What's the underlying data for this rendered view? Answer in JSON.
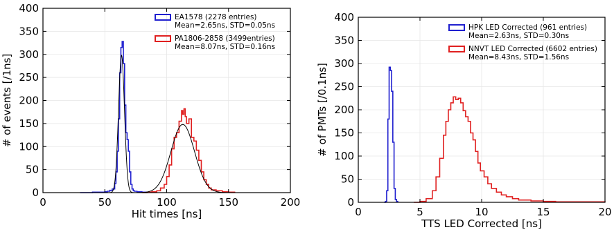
{
  "chart_data": [
    {
      "type": "histogram",
      "xlabel": "Hit times [ns]",
      "ylabel": "# of events [/1ns]",
      "xlim": [
        0,
        200
      ],
      "ylim": [
        0,
        400
      ],
      "xticks": [
        0,
        50,
        100,
        150,
        200
      ],
      "yticks": [
        0,
        50,
        100,
        150,
        200,
        250,
        300,
        350,
        400
      ],
      "grid": true,
      "legend_position": "top-right",
      "series": [
        {
          "name": "EA1578 (2278 entries)",
          "stats": "Mean=2.65ns, STD=0.05ns",
          "color": "#1f1fcf",
          "bins": [
            [
              30,
              0
            ],
            [
              40,
              1
            ],
            [
              50,
              2
            ],
            [
              52,
              3
            ],
            [
              54,
              5
            ],
            [
              56,
              8
            ],
            [
              58,
              20
            ],
            [
              59,
              45
            ],
            [
              60,
              90
            ],
            [
              61,
              160
            ],
            [
              62,
              260
            ],
            [
              63,
              315
            ],
            [
              64,
              328
            ],
            [
              65,
              280
            ],
            [
              66,
              190
            ],
            [
              67,
              130
            ],
            [
              68,
              115
            ],
            [
              69,
              90
            ],
            [
              70,
              45
            ],
            [
              71,
              18
            ],
            [
              72,
              8
            ],
            [
              73,
              4
            ],
            [
              74,
              3
            ],
            [
              76,
              2
            ],
            [
              80,
              1
            ],
            [
              85,
              1
            ],
            [
              90,
              0
            ]
          ]
        },
        {
          "name": "PA1806-2858 (3499entries)",
          "stats": "Mean=8.07ns, STD=0.16ns",
          "color": "#e02020",
          "bins": [
            [
              80,
              0
            ],
            [
              84,
              1
            ],
            [
              88,
              2
            ],
            [
              92,
              4
            ],
            [
              95,
              10
            ],
            [
              98,
              18
            ],
            [
              100,
              35
            ],
            [
              102,
              60
            ],
            [
              104,
              95
            ],
            [
              106,
              120
            ],
            [
              108,
              130
            ],
            [
              110,
              155
            ],
            [
              112,
              178
            ],
            [
              113,
              170
            ],
            [
              114,
              182
            ],
            [
              115,
              165
            ],
            [
              116,
              150
            ],
            [
              118,
              160
            ],
            [
              120,
              120
            ],
            [
              122,
              112
            ],
            [
              124,
              92
            ],
            [
              126,
              70
            ],
            [
              128,
              45
            ],
            [
              130,
              28
            ],
            [
              132,
              18
            ],
            [
              134,
              10
            ],
            [
              136,
              6
            ],
            [
              140,
              4
            ],
            [
              145,
              2
            ],
            [
              150,
              1
            ],
            [
              155,
              0
            ]
          ]
        }
      ],
      "fits": [
        {
          "mean": 63.5,
          "sigma": 2.4,
          "amplitude": 298
        },
        {
          "mean": 113,
          "sigma": 9.5,
          "amplitude": 148
        }
      ]
    },
    {
      "type": "histogram",
      "xlabel": "TTS LED Corrected [ns]",
      "ylabel": "# of PMTs [/0.1ns]",
      "xlim": [
        0,
        20
      ],
      "ylim": [
        0,
        400
      ],
      "xticks": [
        0,
        5,
        10,
        15,
        20
      ],
      "yticks": [
        0,
        50,
        100,
        150,
        200,
        250,
        300,
        350,
        400
      ],
      "grid": true,
      "legend_position": "top-right",
      "series": [
        {
          "name": "HPK LED Corrected (961 entries)",
          "stats": "Mean=2.63ns, STD=0.30ns",
          "color": "#1f1fcf",
          "bins": [
            [
              2.1,
              0
            ],
            [
              2.2,
              2
            ],
            [
              2.3,
              25
            ],
            [
              2.4,
              180
            ],
            [
              2.5,
              292
            ],
            [
              2.6,
              285
            ],
            [
              2.7,
              240
            ],
            [
              2.8,
              130
            ],
            [
              2.9,
              30
            ],
            [
              3.0,
              6
            ],
            [
              3.1,
              2
            ],
            [
              3.2,
              0
            ]
          ]
        },
        {
          "name": "NNVT LED Corrected (6602 entries)",
          "stats": "Mean=8.43ns, STD=1.56ns",
          "color": "#e02020",
          "bins": [
            [
              4.5,
              0
            ],
            [
              5.0,
              2
            ],
            [
              5.5,
              8
            ],
            [
              6.0,
              25
            ],
            [
              6.3,
              55
            ],
            [
              6.6,
              95
            ],
            [
              6.9,
              145
            ],
            [
              7.1,
              175
            ],
            [
              7.3,
              200
            ],
            [
              7.5,
              215
            ],
            [
              7.7,
              228
            ],
            [
              7.9,
              222
            ],
            [
              8.1,
              225
            ],
            [
              8.3,
              215
            ],
            [
              8.5,
              198
            ],
            [
              8.7,
              185
            ],
            [
              8.9,
              175
            ],
            [
              9.1,
              150
            ],
            [
              9.3,
              135
            ],
            [
              9.5,
              110
            ],
            [
              9.7,
              85
            ],
            [
              9.9,
              68
            ],
            [
              10.2,
              55
            ],
            [
              10.5,
              40
            ],
            [
              10.8,
              30
            ],
            [
              11.2,
              22
            ],
            [
              11.6,
              16
            ],
            [
              12.0,
              12
            ],
            [
              12.5,
              8
            ],
            [
              13.0,
              5
            ],
            [
              14.0,
              3
            ],
            [
              15.0,
              2
            ],
            [
              16.0,
              1
            ],
            [
              17.5,
              1
            ],
            [
              19.5,
              1
            ],
            [
              20,
              0
            ]
          ]
        }
      ]
    }
  ]
}
